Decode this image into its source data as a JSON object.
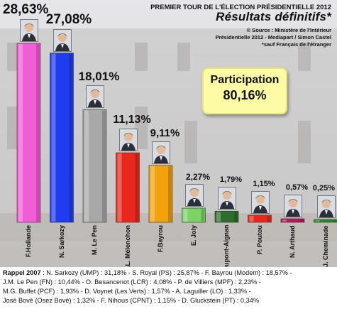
{
  "header": {
    "top_line": "PREMIER TOUR DE L'ÉLECTION PRÉSIDENTIELLE 2012",
    "title": "Résultats définitifs*",
    "source_lines": [
      "© Source : Ministère de l'Intérieur",
      "Présidentielle 2012 - Mediapart / Simon Castel",
      "*sauf Français de l'étranger"
    ]
  },
  "participation": {
    "label": "Participation",
    "value": "80,16%"
  },
  "chart_data": {
    "type": "bar",
    "title": "Résultats définitifs*",
    "categories": [
      "F.Hollande",
      "N. Sarkozy",
      "M. Le Pen",
      "J.L. Mélenchon",
      "F.Bayrou",
      "E. Joly",
      "N. Dupont-Aignan",
      "P. Poutou",
      "N. Arthaud",
      "J. Cheminade"
    ],
    "values": [
      28.63,
      27.08,
      18.01,
      11.13,
      9.11,
      2.27,
      1.79,
      1.15,
      0.57,
      0.25
    ],
    "value_labels": [
      "28,63%",
      "27,08%",
      "18,01%",
      "11,13%",
      "9,11%",
      "2,27%",
      "1,79%",
      "1,15%",
      "0,57%",
      "0,25%"
    ],
    "colors": [
      "#f25cd6",
      "#1f3cf0",
      "#a8a8a8",
      "#e8281c",
      "#f2a20c",
      "#7ad463",
      "#2c6e2c",
      "#e8281c",
      "#c0135e",
      "#2a8a2a"
    ],
    "ylim": [
      0,
      30
    ],
    "grid": false
  },
  "rappel": {
    "label": "Rappel 2007",
    "lines": [
      " : N. Sarkozy (UMP) : 31,18% - S. Royal (PS) : 25,87% - F. Bayrou (Modem) : 18,57% -",
      "J.M. Le Pen (FN) : 10,44% - O. Besancenot (LCR) : 4,08% - P. de Villiers (MPF) : 2,23% -",
      "M.G. Buffet (PCF) : 1,93% - D. Voynet (Les Verts) : 1,57% - A. Laguiller (LO) : 1,33% -",
      "José Bové (Osez Bové) : 1,32% - F. Nihous (CPNT) : 1,15% - D. Gluckstein (PT) : 0,34%"
    ]
  }
}
